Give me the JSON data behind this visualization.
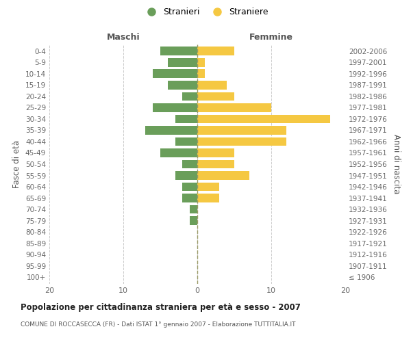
{
  "age_groups": [
    "100+",
    "95-99",
    "90-94",
    "85-89",
    "80-84",
    "75-79",
    "70-74",
    "65-69",
    "60-64",
    "55-59",
    "50-54",
    "45-49",
    "40-44",
    "35-39",
    "30-34",
    "25-29",
    "20-24",
    "15-19",
    "10-14",
    "5-9",
    "0-4"
  ],
  "birth_years": [
    "≤ 1906",
    "1907-1911",
    "1912-1916",
    "1917-1921",
    "1922-1926",
    "1927-1931",
    "1932-1936",
    "1937-1941",
    "1942-1946",
    "1947-1951",
    "1952-1956",
    "1957-1961",
    "1962-1966",
    "1967-1971",
    "1972-1976",
    "1977-1981",
    "1982-1986",
    "1987-1991",
    "1992-1996",
    "1997-2001",
    "2002-2006"
  ],
  "maschi": [
    0,
    0,
    0,
    0,
    0,
    1,
    1,
    2,
    2,
    3,
    2,
    5,
    3,
    7,
    3,
    6,
    2,
    4,
    6,
    4,
    5
  ],
  "femmine": [
    0,
    0,
    0,
    0,
    0,
    0,
    0,
    3,
    3,
    7,
    5,
    5,
    12,
    12,
    18,
    10,
    5,
    4,
    1,
    1,
    5
  ],
  "maschi_color": "#6a9e5a",
  "femmine_color": "#f5c842",
  "title": "Popolazione per cittadinanza straniera per età e sesso - 2007",
  "subtitle": "COMUNE DI ROCCASECCA (FR) - Dati ISTAT 1° gennaio 2007 - Elaborazione TUTTITALIA.IT",
  "xlabel_left": "Maschi",
  "xlabel_right": "Femmine",
  "ylabel_left": "Fasce di età",
  "ylabel_right": "Anni di nascita",
  "legend_stranieri": "Stranieri",
  "legend_straniere": "Straniere",
  "xlim": 20,
  "background_color": "#ffffff",
  "grid_color": "#cccccc",
  "bar_height": 0.78
}
